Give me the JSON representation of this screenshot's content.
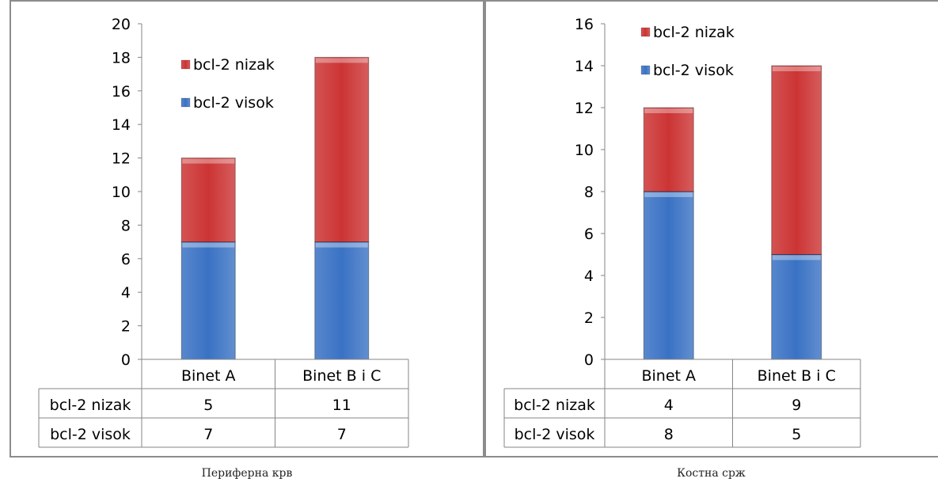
{
  "chart_data": [
    {
      "type": "bar",
      "stacked": true,
      "categories": [
        "Binet A",
        "Binet B i C"
      ],
      "series": [
        {
          "name": "bcl-2 visok",
          "values": [
            7,
            7
          ],
          "color": "#3a72c4"
        },
        {
          "name": "bcl-2 nizak",
          "values": [
            5,
            11
          ],
          "color": "#cc3434"
        }
      ],
      "ylim": [
        0,
        20
      ],
      "ystep": 2,
      "legend": "top",
      "data_table": true,
      "caption": "Периферна крв"
    },
    {
      "type": "bar",
      "stacked": true,
      "categories": [
        "Binet A",
        "Binet B i C"
      ],
      "series": [
        {
          "name": "bcl-2 visok",
          "values": [
            8,
            5
          ],
          "color": "#3a72c4"
        },
        {
          "name": "bcl-2 nizak",
          "values": [
            4,
            9
          ],
          "color": "#cc3434"
        }
      ],
      "ylim": [
        0,
        16
      ],
      "ystep": 2,
      "legend": "top",
      "data_table": true,
      "caption": "Костна срж"
    }
  ]
}
